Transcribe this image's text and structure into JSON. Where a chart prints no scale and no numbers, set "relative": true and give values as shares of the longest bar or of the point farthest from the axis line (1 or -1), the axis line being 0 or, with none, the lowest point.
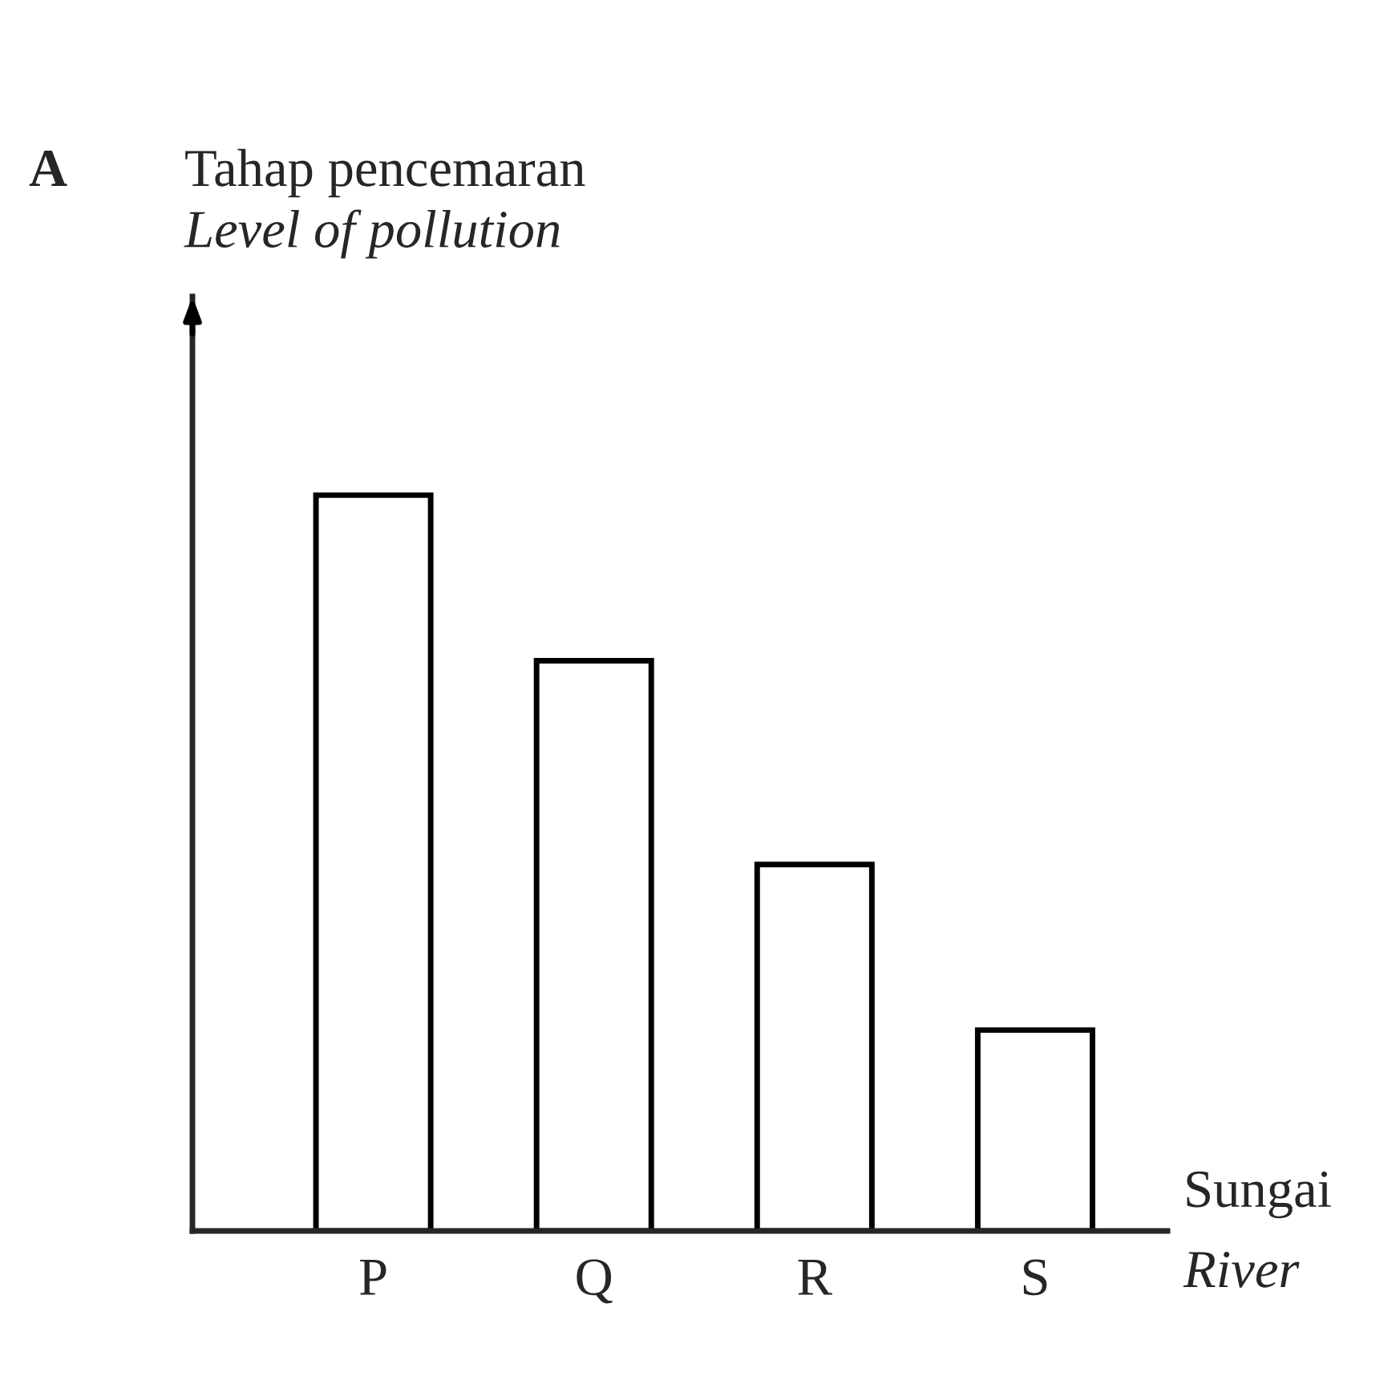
{
  "chart_data": {
    "type": "bar",
    "relative": true,
    "categories": [
      "P",
      "Q",
      "R",
      "S"
    ],
    "values": [
      1,
      0.775,
      0.498,
      0.273
    ],
    "color": "#ffffff",
    "ylabel": "Tahap pencemaran\nLevel of pollution",
    "xlabel": "Sungai\nRiver",
    "annotations": [
      "A"
    ],
    "grid": false,
    "legend": false
  }
}
